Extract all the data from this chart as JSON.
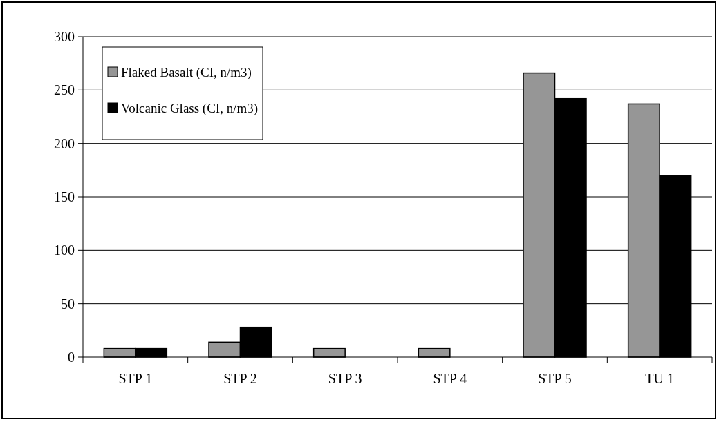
{
  "chart_data": {
    "type": "bar",
    "categories": [
      "STP 1",
      "STP 2",
      "STP 3",
      "STP 4",
      "STP 5",
      "TU 1"
    ],
    "series": [
      {
        "name": "Flaked Basalt (CI, n/m3)",
        "color": "#969696",
        "values": [
          8,
          14,
          8,
          8,
          266,
          237
        ]
      },
      {
        "name": "Volcanic Glass (CI, n/m3)",
        "color": "#000000",
        "values": [
          8,
          28,
          0,
          0,
          242,
          170
        ]
      }
    ],
    "ylim": [
      0,
      300
    ],
    "yticks": [
      0,
      50,
      100,
      150,
      200,
      250,
      300
    ],
    "grid": "y",
    "legend": "top left"
  }
}
